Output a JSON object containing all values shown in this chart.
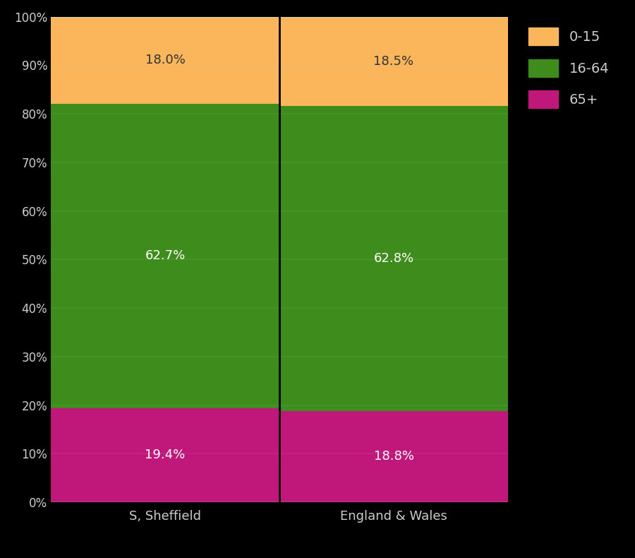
{
  "categories": [
    "S, Sheffield",
    "England & Wales"
  ],
  "segments": {
    "65+": [
      19.4,
      18.8
    ],
    "16-64": [
      62.7,
      62.8
    ],
    "0-15": [
      18.0,
      18.5
    ]
  },
  "colors": {
    "0-15": "#FBB55A",
    "16-64": "#3E8C1C",
    "65+": "#C0187A"
  },
  "label_colors": {
    "65+": "#FFFFFF",
    "16-64": "#FFFFFF",
    "0-15": "#333333"
  },
  "ytick_labels": [
    "0%",
    "10%",
    "20%",
    "30%",
    "40%",
    "50%",
    "60%",
    "70%",
    "80%",
    "90%",
    "100%"
  ],
  "ytick_values": [
    0,
    10,
    20,
    30,
    40,
    50,
    60,
    70,
    80,
    90,
    100
  ],
  "background_color": "#000000",
  "text_color": "#CCCCCC",
  "figsize": [
    9.0,
    7.9
  ],
  "dpi": 100
}
